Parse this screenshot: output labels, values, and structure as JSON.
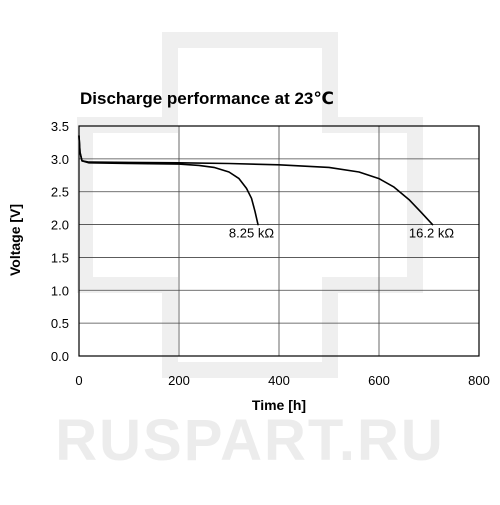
{
  "watermark": {
    "text": "RUSPART.RU",
    "color": "#ececec"
  },
  "chart_data": {
    "type": "line",
    "title": "Discharge performance at 23℃",
    "xlabel": "Time [h]",
    "ylabel": "Voltage [V]",
    "xlim": [
      0,
      800
    ],
    "ylim": [
      0,
      3.5
    ],
    "x_ticks": [
      "0",
      "200",
      "400",
      "600",
      "800"
    ],
    "x_tick_values": [
      0,
      200,
      400,
      600,
      800
    ],
    "y_ticks": [
      "0.0",
      "0.5",
      "1.0",
      "1.5",
      "2.0",
      "2.5",
      "3.0",
      "3.5"
    ],
    "y_tick_values": [
      0,
      0.5,
      1.0,
      1.5,
      2.0,
      2.5,
      3.0,
      3.5
    ],
    "grid": true,
    "line_color": "#000000",
    "series": [
      {
        "name": "8.25 kΩ",
        "points": [
          [
            0,
            3.35
          ],
          [
            2,
            3.1
          ],
          [
            6,
            2.97
          ],
          [
            20,
            2.94
          ],
          [
            100,
            2.93
          ],
          [
            200,
            2.92
          ],
          [
            240,
            2.9
          ],
          [
            270,
            2.87
          ],
          [
            300,
            2.8
          ],
          [
            320,
            2.7
          ],
          [
            335,
            2.55
          ],
          [
            345,
            2.4
          ],
          [
            352,
            2.2
          ],
          [
            358,
            2.0
          ]
        ]
      },
      {
        "name": "16.2 kΩ",
        "points": [
          [
            0,
            3.35
          ],
          [
            2,
            3.1
          ],
          [
            6,
            2.97
          ],
          [
            20,
            2.95
          ],
          [
            200,
            2.94
          ],
          [
            300,
            2.93
          ],
          [
            400,
            2.91
          ],
          [
            500,
            2.87
          ],
          [
            560,
            2.8
          ],
          [
            600,
            2.7
          ],
          [
            630,
            2.57
          ],
          [
            660,
            2.38
          ],
          [
            685,
            2.18
          ],
          [
            707,
            2.0
          ]
        ]
      }
    ],
    "annotations": [
      {
        "text": "8.25 kΩ",
        "x": 345,
        "y": 1.8
      },
      {
        "text": "16.2 kΩ",
        "x": 705,
        "y": 1.8
      }
    ]
  }
}
